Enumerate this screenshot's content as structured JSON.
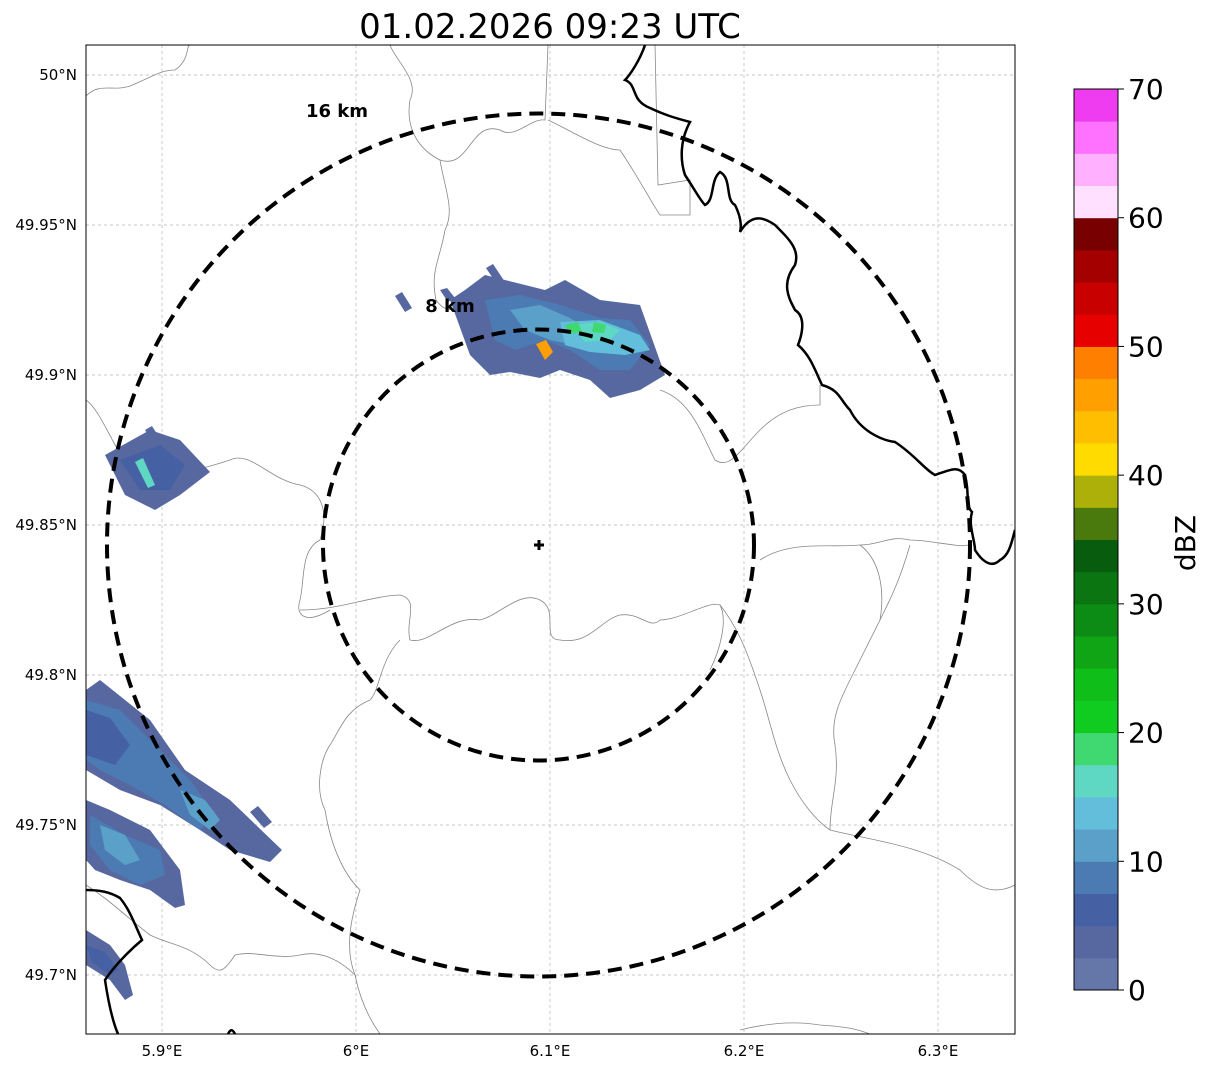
{
  "title": "01.02.2026 09:23 UTC",
  "map": {
    "lon_ticks": [
      "5.9°E",
      "6°E",
      "6.1°E",
      "6.2°E",
      "6.3°E"
    ],
    "lat_ticks": [
      "50°N",
      "49.95°N",
      "49.9°N",
      "49.85°N",
      "49.8°N",
      "49.75°N",
      "49.7°N"
    ],
    "lon_range": [
      5.86,
      6.34
    ],
    "lat_range": [
      49.68,
      50.01
    ],
    "grid": true,
    "radar_site": {
      "lon": 6.095,
      "lat": 49.843
    },
    "range_rings": [
      {
        "radius_km": 8,
        "label": "8 km"
      },
      {
        "radius_km": 16,
        "label": "16 km"
      }
    ]
  },
  "colorbar": {
    "label": "dBZ",
    "tick_labels": [
      "0",
      "10",
      "20",
      "30",
      "40",
      "50",
      "60",
      "70"
    ],
    "levels": [
      0,
      2.5,
      5,
      7.5,
      10,
      12.5,
      15,
      17.5,
      20,
      22.5,
      25,
      27.5,
      30,
      32.5,
      35,
      37.5,
      40,
      42.5,
      45,
      47.5,
      50,
      52.5,
      55,
      57.5,
      60,
      62.5,
      65,
      67.5,
      70
    ],
    "colors": [
      "#6576a8",
      "#5768a0",
      "#4660a4",
      "#4c7bb4",
      "#5ba0c9",
      "#63bedc",
      "#5fd8c3",
      "#40d870",
      "#10cc20",
      "#10be1a",
      "#0fa514",
      "#0c8c14",
      "#0b7512",
      "#075c0e",
      "#4a7a0d",
      "#adb009",
      "#ffdb00",
      "#ffbf00",
      "#ff9f00",
      "#ff8000",
      "#e60000",
      "#c80000",
      "#a40000",
      "#780000",
      "#ffe0ff",
      "#ffb0ff",
      "#ff72ff",
      "#f03cf0"
    ]
  }
}
